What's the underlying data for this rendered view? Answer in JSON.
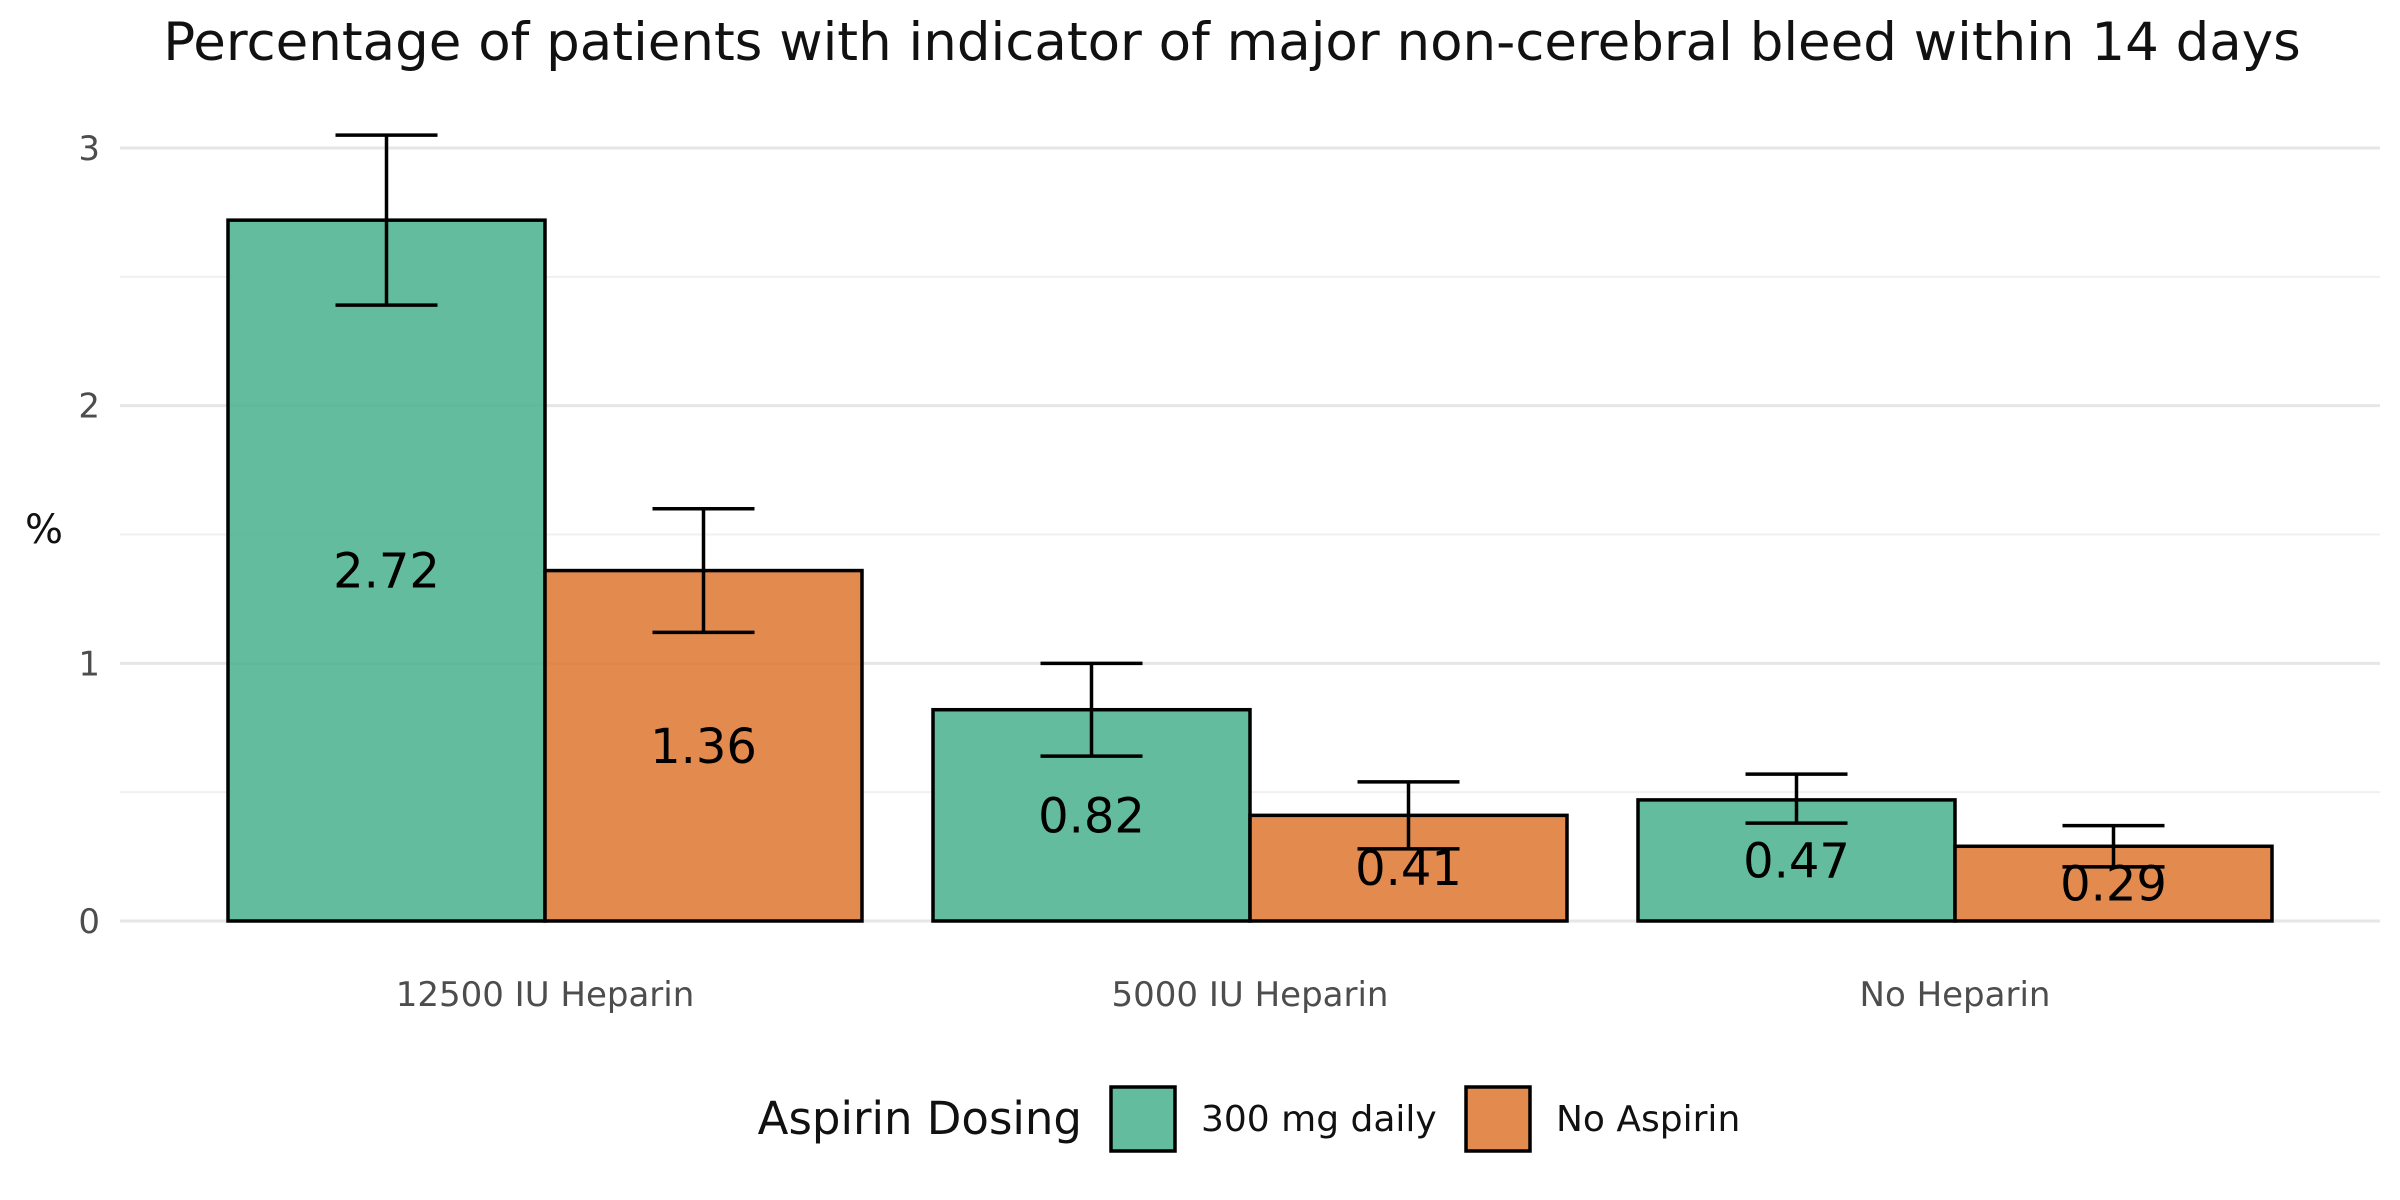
{
  "chart_data": {
    "type": "bar",
    "title": "Percentage of patients with indicator of major non-cerebral bleed within 14 days",
    "xlabel": "",
    "ylabel": "%",
    "ylim": [
      0,
      3.05
    ],
    "yticks": [
      "0",
      "1",
      "2",
      "3"
    ],
    "grid": true,
    "categories": [
      "12500 IU Heparin",
      "5000 IU Heparin",
      "No Heparin"
    ],
    "legend": {
      "title": "Aspirin Dosing",
      "position": "bottom"
    },
    "series": [
      {
        "name": "300 mg daily",
        "color": "#4db38f",
        "values": [
          2.72,
          0.82,
          0.47
        ],
        "labels": [
          "2.72",
          "0.82",
          "0.47"
        ],
        "error_low": [
          2.39,
          0.64,
          0.38
        ],
        "error_high": [
          3.05,
          1.0,
          0.57
        ]
      },
      {
        "name": "No Aspirin",
        "color": "#df7a36",
        "values": [
          1.36,
          0.41,
          0.29
        ],
        "labels": [
          "1.36",
          "0.41",
          "0.29"
        ],
        "error_low": [
          1.12,
          0.28,
          0.21
        ],
        "error_high": [
          1.6,
          0.54,
          0.37
        ]
      }
    ]
  }
}
